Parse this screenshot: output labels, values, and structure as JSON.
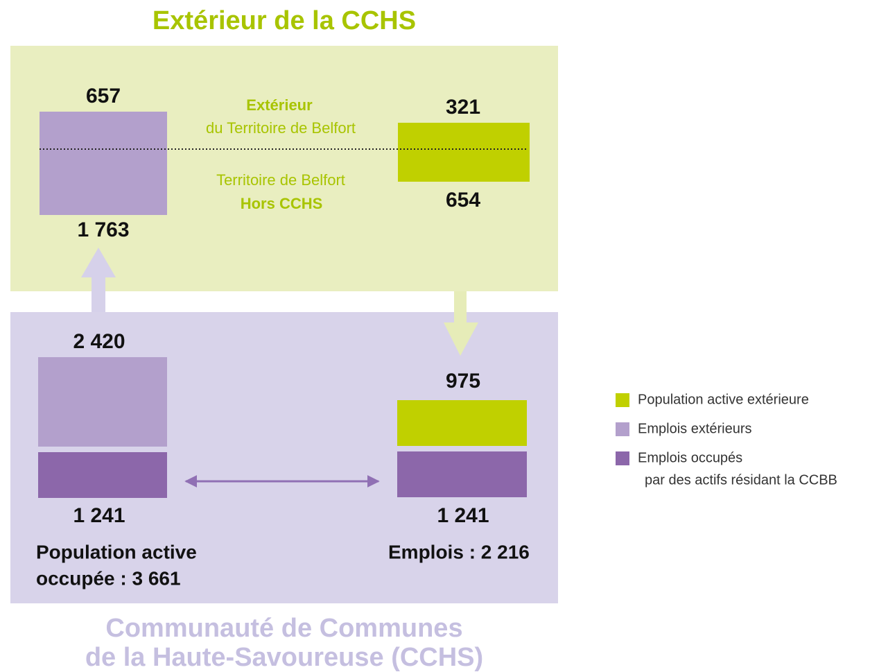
{
  "header": {
    "title": "Extérieur de la CCHS"
  },
  "footer": {
    "lines": [
      "Communauté de Communes",
      "de la Haute-Savoureuse (CCHS)"
    ]
  },
  "outside": {
    "left_top": "657",
    "left_bottom": "1 763",
    "right_top": "321",
    "right_bottom": "654",
    "upper_zone": [
      "Extérieur",
      "du Territoire de Belfort"
    ],
    "lower_zone": [
      "Territoire de Belfort",
      "Hors CCHS"
    ]
  },
  "inside": {
    "left_top": "2 420",
    "left_bottom": "1 241",
    "right_top": "975",
    "right_bottom": "1 241",
    "left_caption": [
      "Population active",
      "occupée : 3 661"
    ],
    "right_caption": "Emplois : 2 216"
  },
  "legend": {
    "items": [
      "Population active extérieure",
      "Emplois extérieurs",
      "Emplois occupés"
    ],
    "item_3_line_2": "par des actifs résidant la CCBB"
  }
}
